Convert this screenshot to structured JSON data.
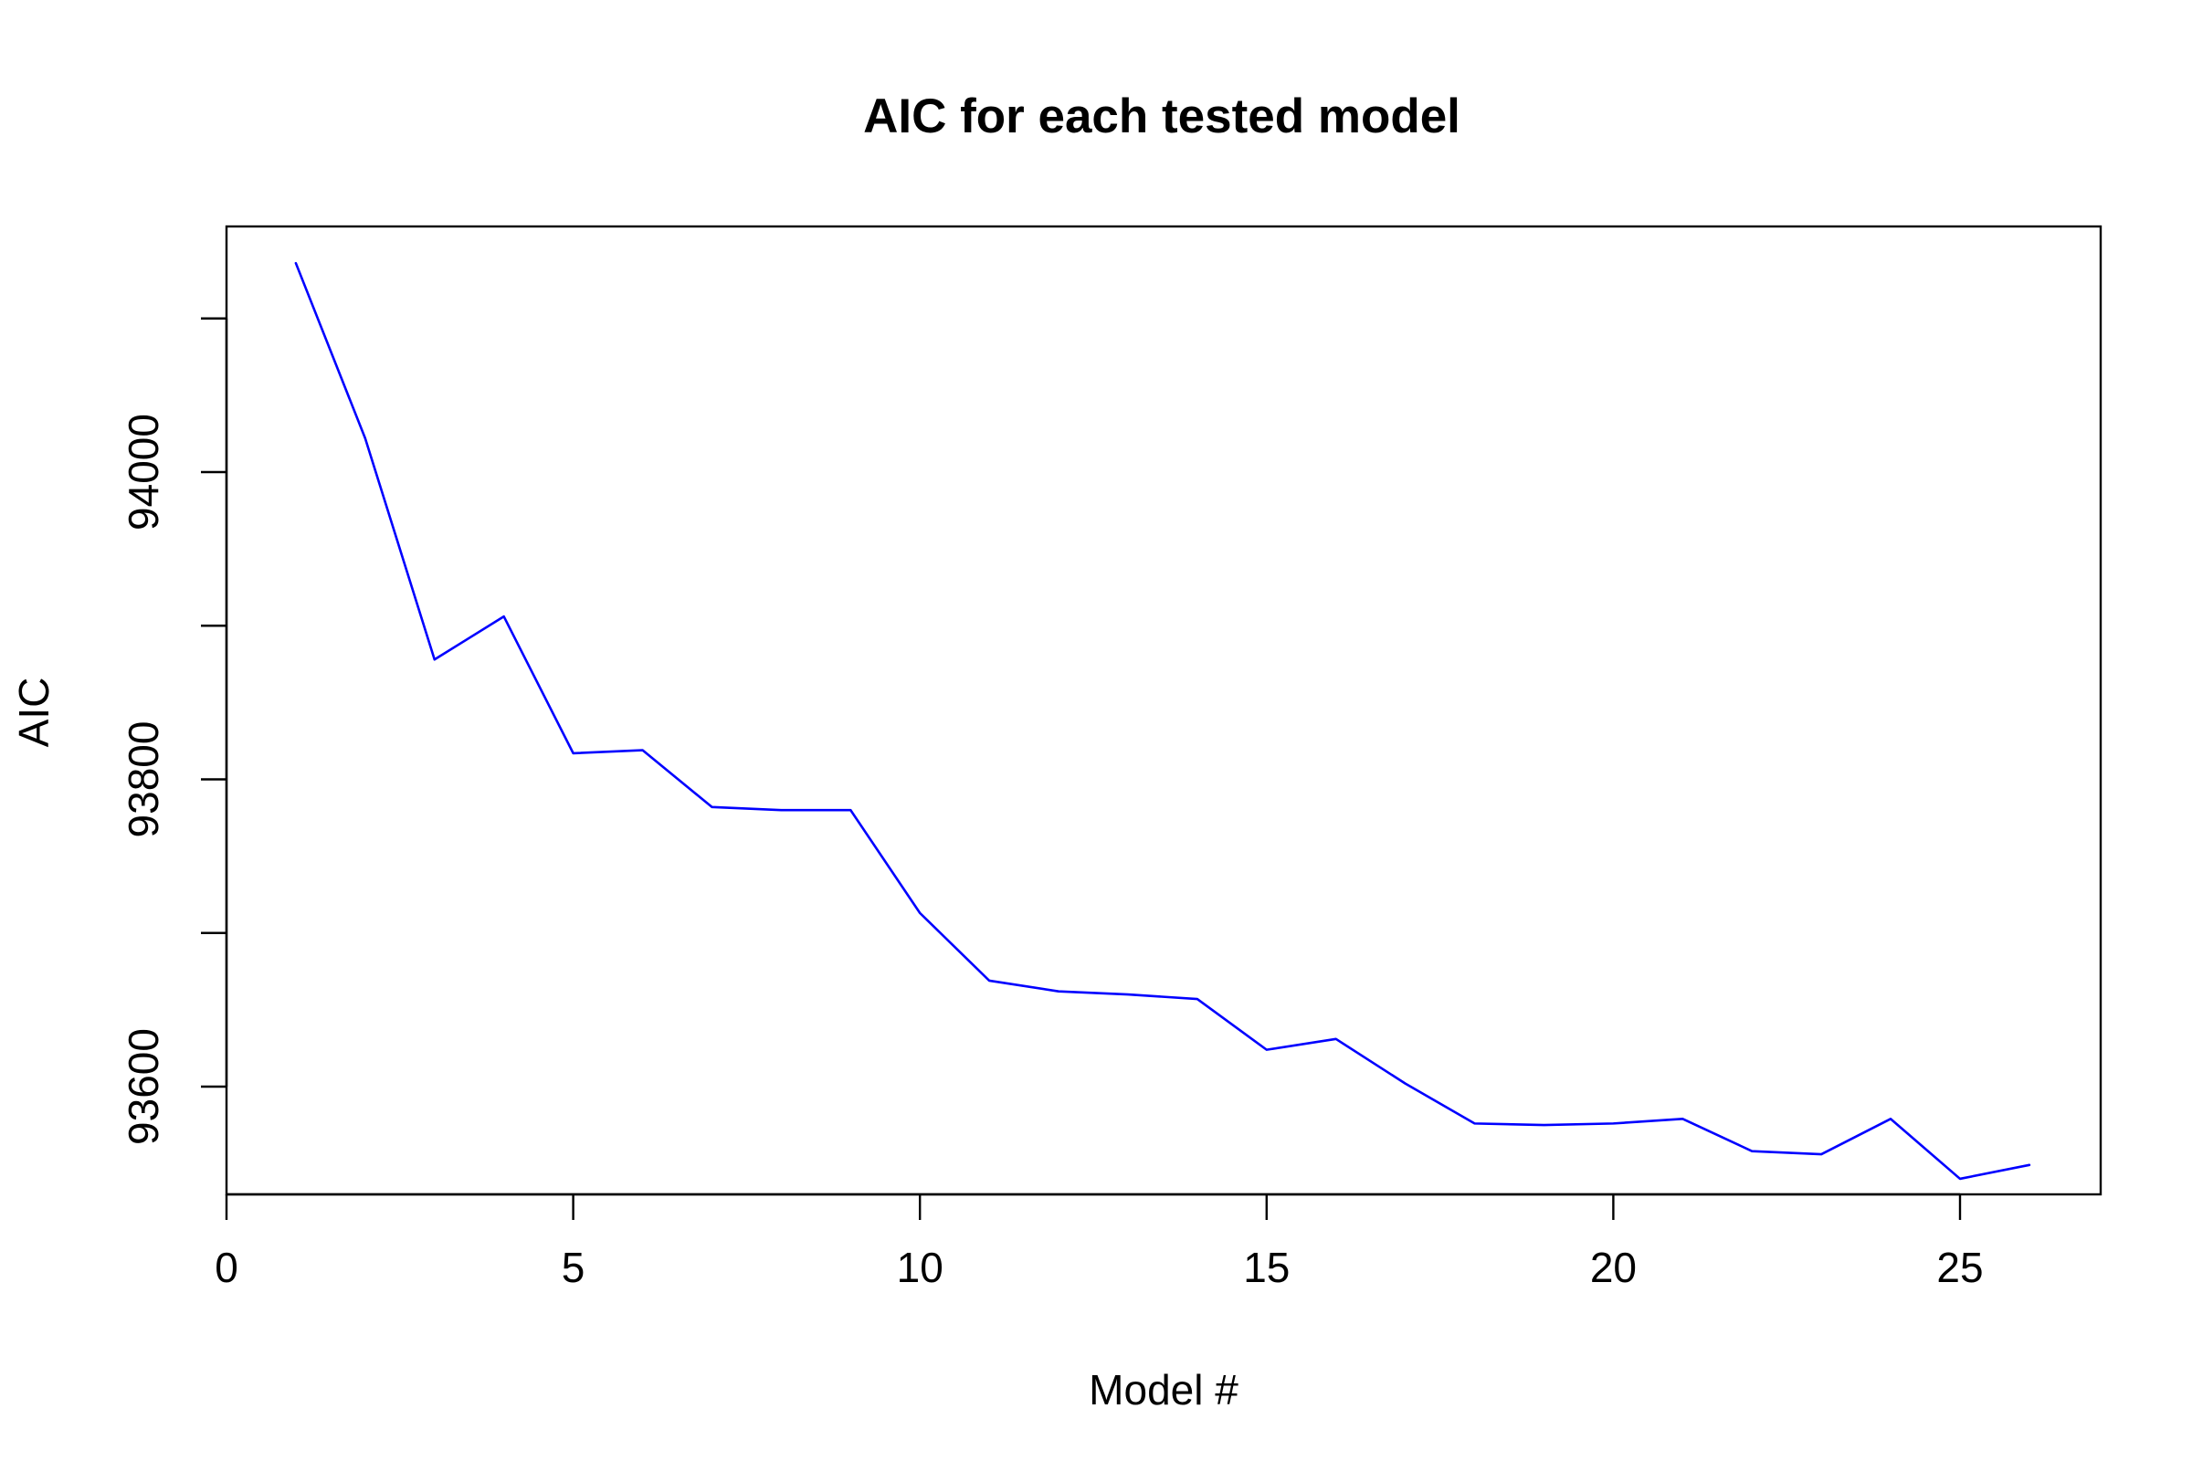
{
  "chart_data": {
    "type": "line",
    "title": "AIC for each tested model",
    "xlabel": "Model #",
    "ylabel": "AIC",
    "xlim": [
      0,
      27
    ],
    "ylim": [
      93540,
      94170
    ],
    "x_ticks": [
      0,
      5,
      10,
      15,
      20,
      25
    ],
    "y_ticks": [
      93600,
      93700,
      93800,
      93900,
      94000,
      94100
    ],
    "y_tick_labels": [
      93600,
      93800,
      94000
    ],
    "grid": false,
    "legend": "none",
    "series": [
      {
        "color": "#0000ff",
        "x": [
          1,
          2,
          3,
          4,
          5,
          6,
          7,
          8,
          9,
          10,
          11,
          12,
          13,
          14,
          15,
          16,
          17,
          18,
          19,
          20,
          21,
          22,
          23,
          24,
          25,
          26
        ],
        "values": [
          94136,
          94022,
          93878,
          93906,
          93817,
          93819,
          93782,
          93780,
          93780,
          93713,
          93669,
          93662,
          93660,
          93657,
          93624,
          93631,
          93602,
          93576,
          93575,
          93576,
          93579,
          93558,
          93556,
          93579,
          93540,
          93549
        ]
      }
    ]
  }
}
